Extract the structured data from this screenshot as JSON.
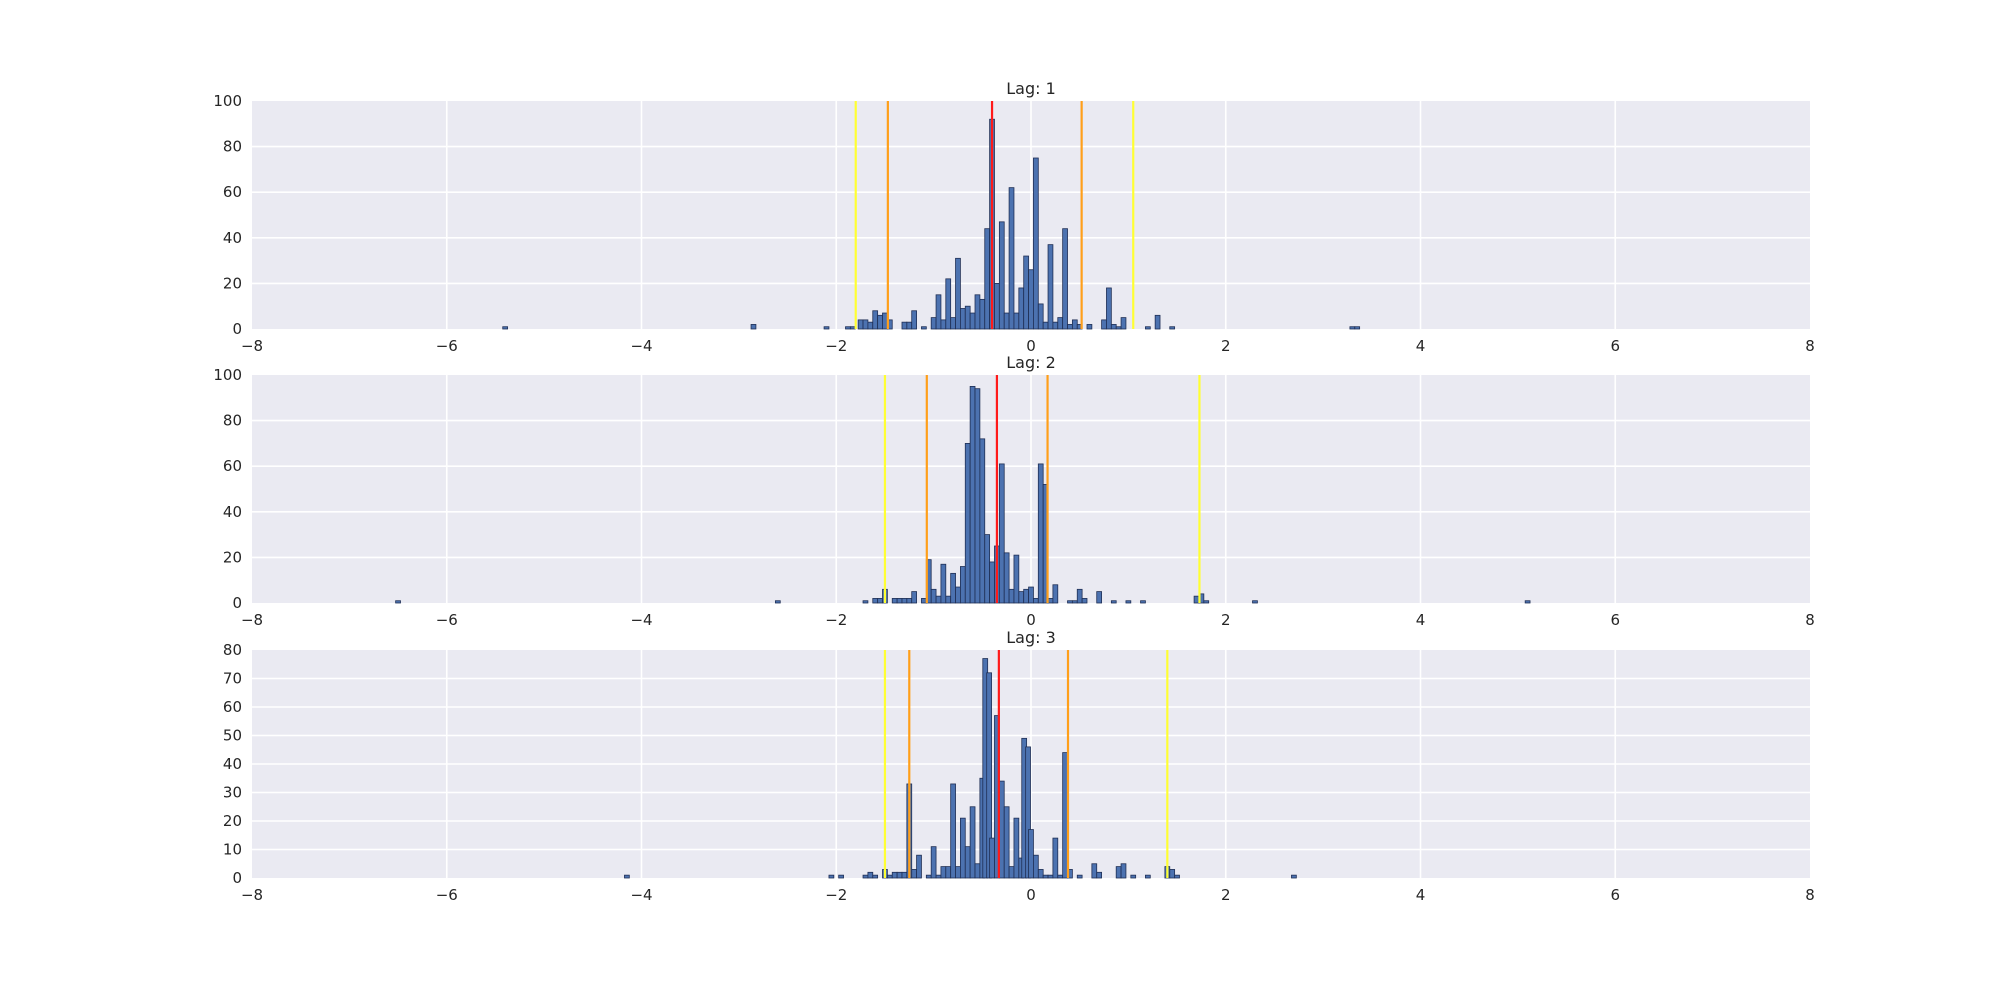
{
  "chart_data": [
    {
      "type": "bar",
      "title": "Lag: 1",
      "xlabel": "",
      "ylabel": "",
      "xlim": [
        -8,
        8
      ],
      "ylim": [
        0,
        100
      ],
      "xticks": [
        -8,
        -6,
        -4,
        -2,
        0,
        2,
        4,
        6,
        8
      ],
      "xtick_labels": [
        "−8",
        "−6",
        "−4",
        "−2",
        "0",
        "2",
        "4",
        "6",
        "8"
      ],
      "yticks": [
        0,
        20,
        40,
        60,
        80,
        100
      ],
      "ytick_labels": [
        "0",
        "20",
        "40",
        "60",
        "80",
        "100"
      ],
      "grid": true,
      "bin_width": 0.05,
      "bars": [
        {
          "x": -5.4,
          "y": 1
        },
        {
          "x": -2.85,
          "y": 2
        },
        {
          "x": -2.1,
          "y": 1
        },
        {
          "x": -1.88,
          "y": 1
        },
        {
          "x": -1.83,
          "y": 1
        },
        {
          "x": -1.75,
          "y": 4
        },
        {
          "x": -1.7,
          "y": 4
        },
        {
          "x": -1.65,
          "y": 3
        },
        {
          "x": -1.6,
          "y": 8
        },
        {
          "x": -1.55,
          "y": 6
        },
        {
          "x": -1.5,
          "y": 7
        },
        {
          "x": -1.45,
          "y": 4
        },
        {
          "x": -1.3,
          "y": 3
        },
        {
          "x": -1.25,
          "y": 3
        },
        {
          "x": -1.2,
          "y": 8
        },
        {
          "x": -1.1,
          "y": 1
        },
        {
          "x": -1.0,
          "y": 5
        },
        {
          "x": -0.95,
          "y": 15
        },
        {
          "x": -0.9,
          "y": 4
        },
        {
          "x": -0.85,
          "y": 22
        },
        {
          "x": -0.8,
          "y": 5
        },
        {
          "x": -0.75,
          "y": 31
        },
        {
          "x": -0.7,
          "y": 9
        },
        {
          "x": -0.65,
          "y": 10
        },
        {
          "x": -0.6,
          "y": 7
        },
        {
          "x": -0.55,
          "y": 15
        },
        {
          "x": -0.5,
          "y": 13
        },
        {
          "x": -0.45,
          "y": 44
        },
        {
          "x": -0.4,
          "y": 92
        },
        {
          "x": -0.35,
          "y": 20
        },
        {
          "x": -0.3,
          "y": 47
        },
        {
          "x": -0.25,
          "y": 7
        },
        {
          "x": -0.2,
          "y": 62
        },
        {
          "x": -0.15,
          "y": 7
        },
        {
          "x": -0.1,
          "y": 18
        },
        {
          "x": -0.05,
          "y": 32
        },
        {
          "x": 0.0,
          "y": 26
        },
        {
          "x": 0.05,
          "y": 75
        },
        {
          "x": 0.1,
          "y": 11
        },
        {
          "x": 0.15,
          "y": 3
        },
        {
          "x": 0.2,
          "y": 37
        },
        {
          "x": 0.25,
          "y": 3
        },
        {
          "x": 0.3,
          "y": 5
        },
        {
          "x": 0.35,
          "y": 44
        },
        {
          "x": 0.4,
          "y": 2
        },
        {
          "x": 0.45,
          "y": 4
        },
        {
          "x": 0.5,
          "y": 2
        },
        {
          "x": 0.6,
          "y": 2
        },
        {
          "x": 0.75,
          "y": 4
        },
        {
          "x": 0.8,
          "y": 18
        },
        {
          "x": 0.85,
          "y": 2
        },
        {
          "x": 0.9,
          "y": 1
        },
        {
          "x": 0.95,
          "y": 5
        },
        {
          "x": 1.2,
          "y": 1
        },
        {
          "x": 1.3,
          "y": 6
        },
        {
          "x": 1.45,
          "y": 1
        },
        {
          "x": 3.3,
          "y": 1
        },
        {
          "x": 3.35,
          "y": 1
        }
      ],
      "vlines": [
        {
          "x": -1.8,
          "color": "#ffff33"
        },
        {
          "x": -1.47,
          "color": "#ff9f1a"
        },
        {
          "x": -0.4,
          "color": "#ff1a1a"
        },
        {
          "x": 0.52,
          "color": "#ff9f1a"
        },
        {
          "x": 1.05,
          "color": "#ffff33"
        }
      ]
    },
    {
      "type": "bar",
      "title": "Lag: 2",
      "xlabel": "",
      "ylabel": "",
      "xlim": [
        -8,
        8
      ],
      "ylim": [
        0,
        100
      ],
      "xticks": [
        -8,
        -6,
        -4,
        -2,
        0,
        2,
        4,
        6,
        8
      ],
      "xtick_labels": [
        "−8",
        "−6",
        "−4",
        "−2",
        "0",
        "2",
        "4",
        "6",
        "8"
      ],
      "yticks": [
        0,
        20,
        40,
        60,
        80,
        100
      ],
      "ytick_labels": [
        "0",
        "20",
        "40",
        "60",
        "80",
        "100"
      ],
      "grid": true,
      "bin_width": 0.05,
      "bars": [
        {
          "x": -6.5,
          "y": 1
        },
        {
          "x": -2.6,
          "y": 1
        },
        {
          "x": -1.7,
          "y": 1
        },
        {
          "x": -1.6,
          "y": 2
        },
        {
          "x": -1.55,
          "y": 2
        },
        {
          "x": -1.5,
          "y": 6
        },
        {
          "x": -1.4,
          "y": 2
        },
        {
          "x": -1.35,
          "y": 2
        },
        {
          "x": -1.3,
          "y": 2
        },
        {
          "x": -1.25,
          "y": 2
        },
        {
          "x": -1.2,
          "y": 5
        },
        {
          "x": -1.1,
          "y": 2
        },
        {
          "x": -1.05,
          "y": 19
        },
        {
          "x": -1.0,
          "y": 6
        },
        {
          "x": -0.95,
          "y": 3
        },
        {
          "x": -0.9,
          "y": 17
        },
        {
          "x": -0.85,
          "y": 3
        },
        {
          "x": -0.8,
          "y": 13
        },
        {
          "x": -0.75,
          "y": 7
        },
        {
          "x": -0.7,
          "y": 16
        },
        {
          "x": -0.65,
          "y": 70
        },
        {
          "x": -0.6,
          "y": 95
        },
        {
          "x": -0.55,
          "y": 94
        },
        {
          "x": -0.5,
          "y": 72
        },
        {
          "x": -0.45,
          "y": 30
        },
        {
          "x": -0.4,
          "y": 18
        },
        {
          "x": -0.35,
          "y": 25
        },
        {
          "x": -0.3,
          "y": 61
        },
        {
          "x": -0.25,
          "y": 22
        },
        {
          "x": -0.2,
          "y": 6
        },
        {
          "x": -0.15,
          "y": 21
        },
        {
          "x": -0.1,
          "y": 5
        },
        {
          "x": -0.05,
          "y": 6
        },
        {
          "x": 0.0,
          "y": 7
        },
        {
          "x": 0.05,
          "y": 2
        },
        {
          "x": 0.1,
          "y": 61
        },
        {
          "x": 0.15,
          "y": 52
        },
        {
          "x": 0.2,
          "y": 2
        },
        {
          "x": 0.25,
          "y": 8
        },
        {
          "x": 0.4,
          "y": 1
        },
        {
          "x": 0.45,
          "y": 1
        },
        {
          "x": 0.5,
          "y": 6
        },
        {
          "x": 0.55,
          "y": 2
        },
        {
          "x": 0.7,
          "y": 5
        },
        {
          "x": 0.85,
          "y": 1
        },
        {
          "x": 1.0,
          "y": 1
        },
        {
          "x": 1.15,
          "y": 1
        },
        {
          "x": 1.7,
          "y": 3
        },
        {
          "x": 1.75,
          "y": 4
        },
        {
          "x": 1.8,
          "y": 1
        },
        {
          "x": 2.3,
          "y": 1
        },
        {
          "x": 5.1,
          "y": 1
        }
      ],
      "vlines": [
        {
          "x": -1.5,
          "color": "#ffff33"
        },
        {
          "x": -1.07,
          "color": "#ff9f1a"
        },
        {
          "x": -0.35,
          "color": "#ff1a1a"
        },
        {
          "x": 0.17,
          "color": "#ff9f1a"
        },
        {
          "x": 1.73,
          "color": "#ffff33"
        }
      ]
    },
    {
      "type": "bar",
      "title": "Lag: 3",
      "xlabel": "",
      "ylabel": "",
      "xlim": [
        -8,
        8
      ],
      "ylim": [
        0,
        80
      ],
      "xticks": [
        -8,
        -6,
        -4,
        -2,
        0,
        2,
        4,
        6,
        8
      ],
      "xtick_labels": [
        "−8",
        "−6",
        "−4",
        "−2",
        "0",
        "2",
        "4",
        "6",
        "8"
      ],
      "yticks": [
        0,
        10,
        20,
        30,
        40,
        50,
        60,
        70,
        80
      ],
      "ytick_labels": [
        "0",
        "10",
        "20",
        "30",
        "40",
        "50",
        "60",
        "70",
        "80"
      ],
      "grid": true,
      "bin_width": 0.05,
      "bars": [
        {
          "x": -4.15,
          "y": 1
        },
        {
          "x": -2.05,
          "y": 1
        },
        {
          "x": -1.95,
          "y": 1
        },
        {
          "x": -1.7,
          "y": 1
        },
        {
          "x": -1.65,
          "y": 2
        },
        {
          "x": -1.6,
          "y": 1
        },
        {
          "x": -1.5,
          "y": 3
        },
        {
          "x": -1.45,
          "y": 1
        },
        {
          "x": -1.4,
          "y": 2
        },
        {
          "x": -1.35,
          "y": 2
        },
        {
          "x": -1.3,
          "y": 2
        },
        {
          "x": -1.25,
          "y": 33
        },
        {
          "x": -1.2,
          "y": 3
        },
        {
          "x": -1.15,
          "y": 8
        },
        {
          "x": -1.05,
          "y": 1
        },
        {
          "x": -1.0,
          "y": 11
        },
        {
          "x": -0.95,
          "y": 1
        },
        {
          "x": -0.9,
          "y": 4
        },
        {
          "x": -0.85,
          "y": 4
        },
        {
          "x": -0.8,
          "y": 33
        },
        {
          "x": -0.75,
          "y": 4
        },
        {
          "x": -0.7,
          "y": 21
        },
        {
          "x": -0.65,
          "y": 11
        },
        {
          "x": -0.6,
          "y": 25
        },
        {
          "x": -0.55,
          "y": 5
        },
        {
          "x": -0.5,
          "y": 35
        },
        {
          "x": -0.47,
          "y": 77
        },
        {
          "x": -0.43,
          "y": 72
        },
        {
          "x": -0.4,
          "y": 14
        },
        {
          "x": -0.35,
          "y": 57
        },
        {
          "x": -0.3,
          "y": 34
        },
        {
          "x": -0.25,
          "y": 25
        },
        {
          "x": -0.2,
          "y": 4
        },
        {
          "x": -0.15,
          "y": 21
        },
        {
          "x": -0.1,
          "y": 7
        },
        {
          "x": -0.07,
          "y": 49
        },
        {
          "x": -0.03,
          "y": 46
        },
        {
          "x": 0.0,
          "y": 17
        },
        {
          "x": 0.05,
          "y": 8
        },
        {
          "x": 0.1,
          "y": 3
        },
        {
          "x": 0.15,
          "y": 1
        },
        {
          "x": 0.2,
          "y": 1
        },
        {
          "x": 0.25,
          "y": 14
        },
        {
          "x": 0.3,
          "y": 1
        },
        {
          "x": 0.35,
          "y": 44
        },
        {
          "x": 0.4,
          "y": 3
        },
        {
          "x": 0.5,
          "y": 1
        },
        {
          "x": 0.65,
          "y": 5
        },
        {
          "x": 0.7,
          "y": 2
        },
        {
          "x": 0.9,
          "y": 4
        },
        {
          "x": 0.95,
          "y": 5
        },
        {
          "x": 1.05,
          "y": 1
        },
        {
          "x": 1.2,
          "y": 1
        },
        {
          "x": 1.4,
          "y": 4
        },
        {
          "x": 1.45,
          "y": 3
        },
        {
          "x": 1.5,
          "y": 1
        },
        {
          "x": 2.7,
          "y": 1
        }
      ],
      "vlines": [
        {
          "x": -1.5,
          "color": "#ffff33"
        },
        {
          "x": -1.25,
          "color": "#ff9f1a"
        },
        {
          "x": -0.33,
          "color": "#ff1a1a"
        },
        {
          "x": 0.38,
          "color": "#ff9f1a"
        },
        {
          "x": 1.4,
          "color": "#ffff33"
        }
      ]
    }
  ]
}
